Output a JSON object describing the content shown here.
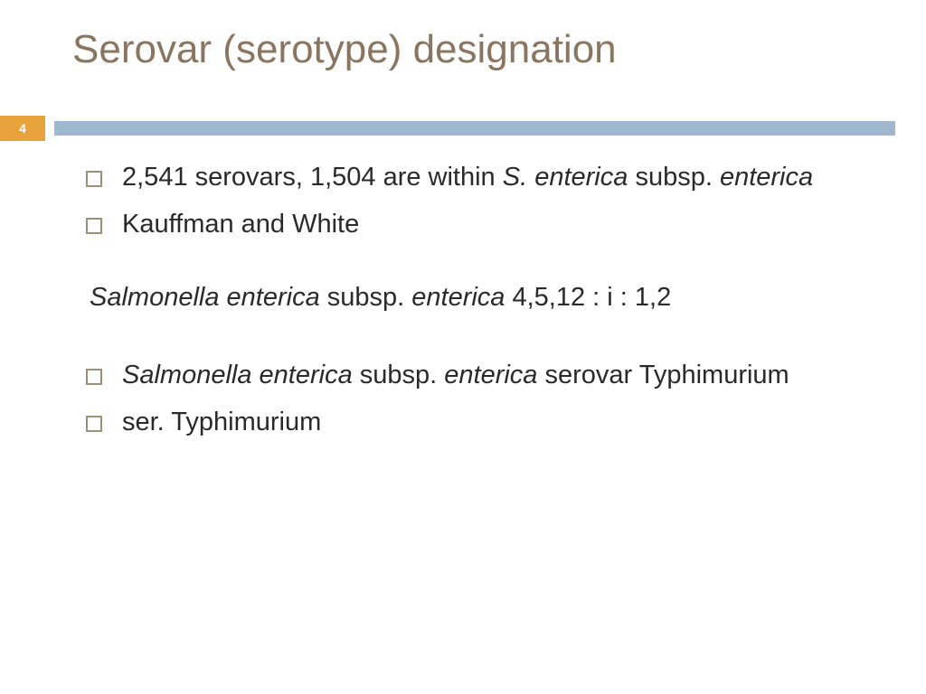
{
  "colors": {
    "title": "#8a7560",
    "badge_bg": "#e8a33d",
    "badge_text": "#ffffff",
    "bar": "#a0b8cf",
    "body_text": "#2a2a2a",
    "bullet_border": "#9e8e7a",
    "background": "#ffffff"
  },
  "typography": {
    "title_fontsize": 44,
    "body_fontsize": 29,
    "badge_fontsize": 14
  },
  "slide": {
    "title": "Serovar (serotype) designation",
    "page_number": "4"
  },
  "bullets": {
    "b1_pre": "2,541 serovars, 1,504 are within ",
    "b1_species": "S. enterica",
    "b1_mid": " subsp. ",
    "b1_subsp": "enterica",
    "b2": "Kauffman and White",
    "center_species": "Salmonella enterica",
    "center_mid": " subsp. ",
    "center_subsp": "enterica",
    "center_post": " 4,5,12 : i : 1,2",
    "b3_species": "Salmonella enterica",
    "b3_mid": " subsp. ",
    "b3_subsp": "enterica",
    "b3_post": " serovar Typhimurium",
    "b4": "ser. Typhimurium"
  }
}
